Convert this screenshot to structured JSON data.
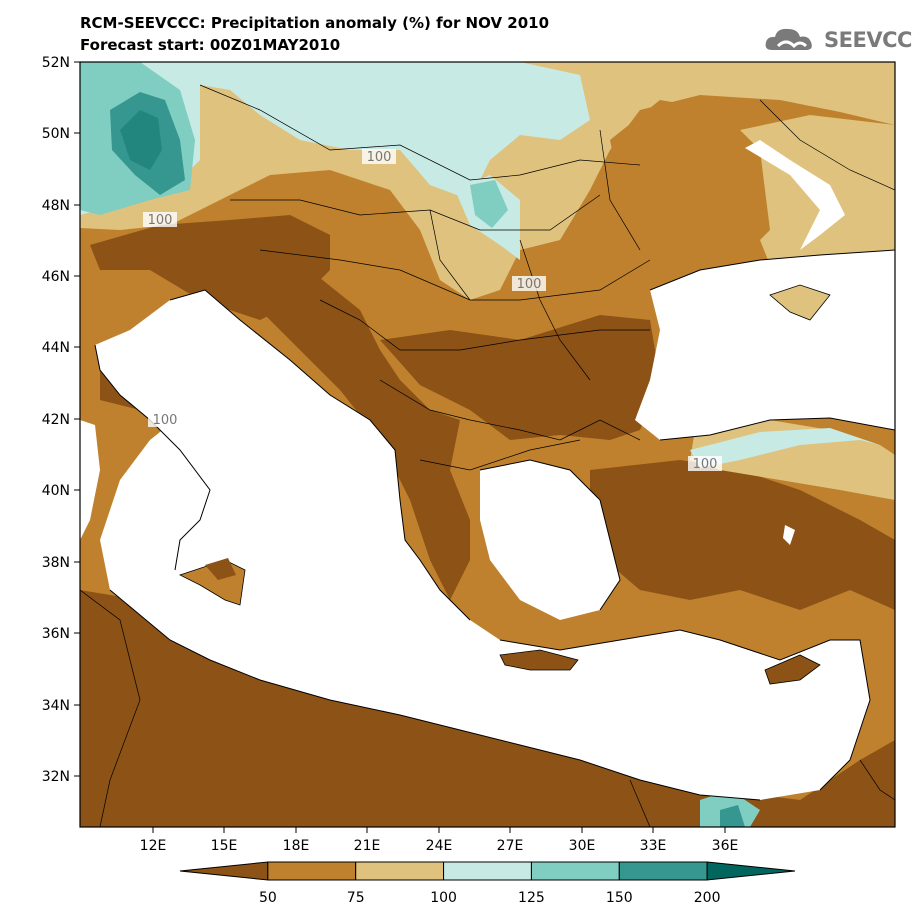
{
  "header": {
    "title_line1": "RCM-SEEVCCC: Precipitation anomaly (%) for NOV 2010",
    "title_line2": "Forecast start: 00Z01MAY2010"
  },
  "logo": {
    "text": "SEEVCCC",
    "icon": "cloud-icon"
  },
  "map": {
    "lat_ticks": [
      "52N",
      "50N",
      "48N",
      "46N",
      "44N",
      "42N",
      "40N",
      "38N",
      "36N",
      "34N",
      "32N"
    ],
    "lon_ticks": [
      "12E",
      "15E",
      "18E",
      "21E",
      "24E",
      "27E",
      "30E",
      "33E",
      "36E"
    ],
    "contour_label": "100"
  },
  "colorbar": {
    "labels": [
      "50",
      "75",
      "100",
      "125",
      "150",
      "200"
    ],
    "colors": [
      "#8c5216",
      "#bf812d",
      "#dfc27d",
      "#c7eae5",
      "#80cdc1",
      "#35978f",
      "#01665e"
    ]
  }
}
